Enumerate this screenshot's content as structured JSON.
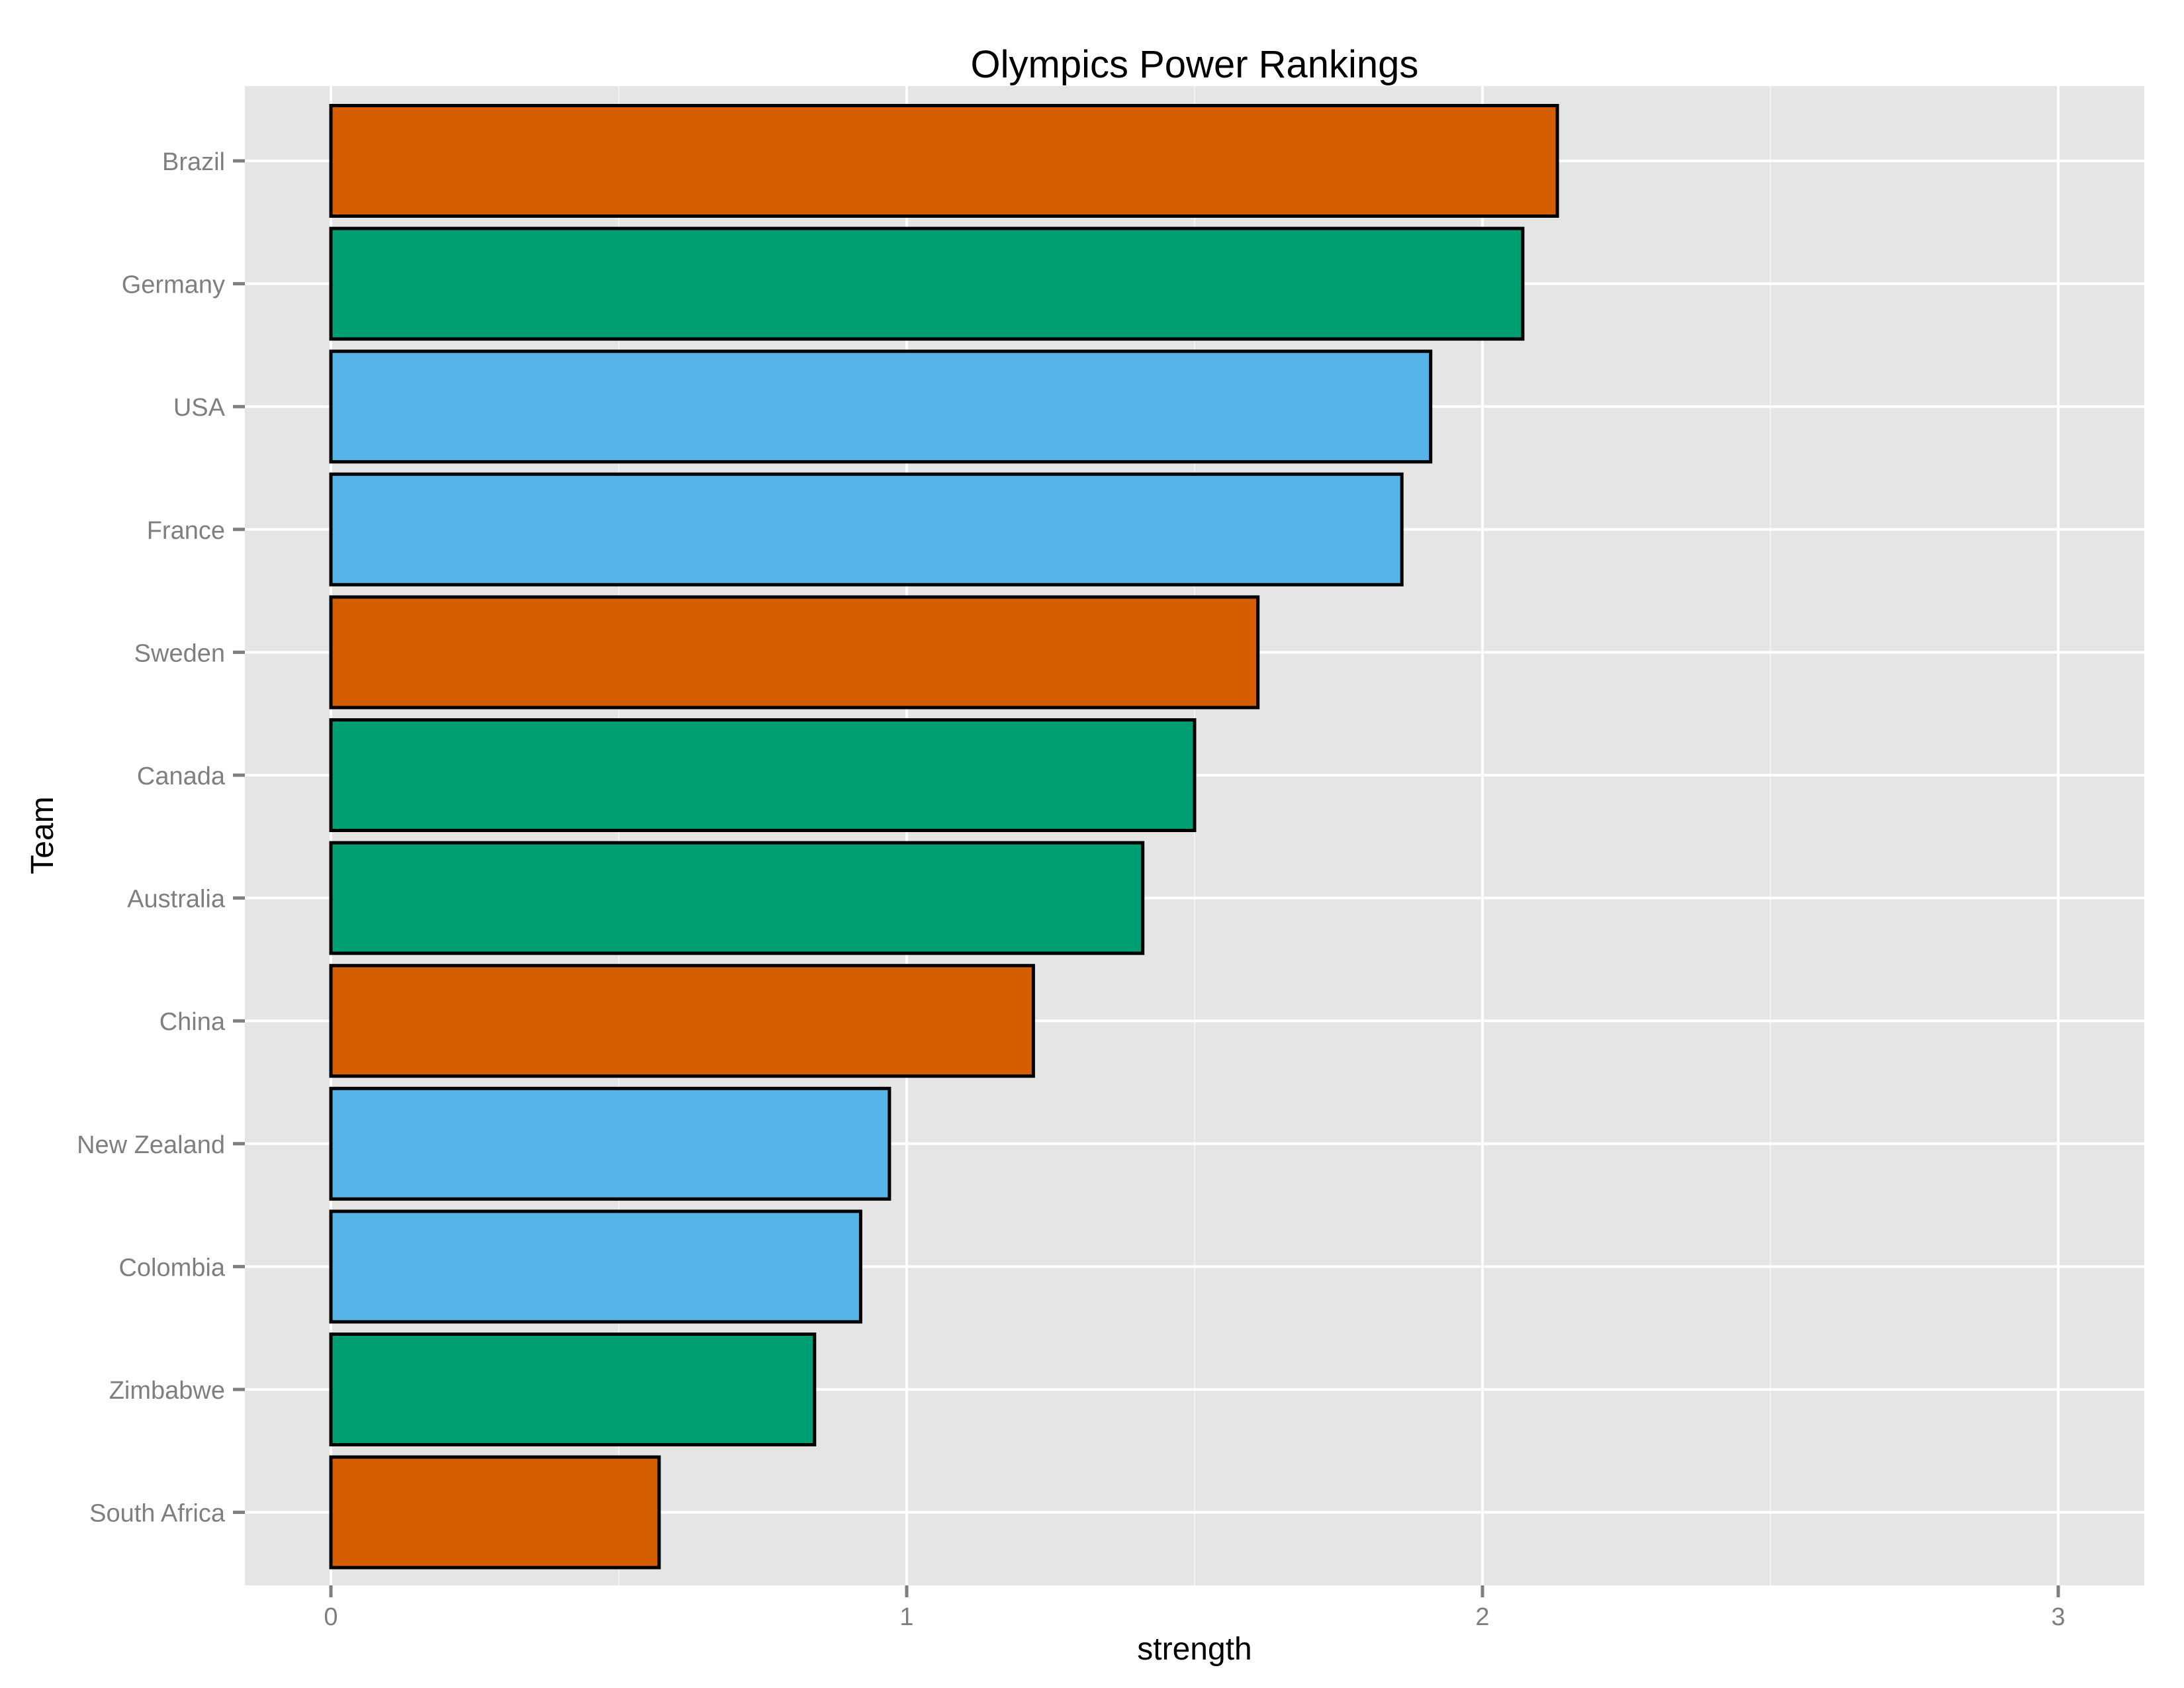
{
  "chart_data": {
    "type": "bar",
    "orientation": "horizontal",
    "title": "Olympics Power Rankings",
    "xlabel": "strength",
    "ylabel": "Team",
    "xlim": [
      0,
      3
    ],
    "xticks": [
      0,
      1,
      2,
      3
    ],
    "grid": true,
    "legend": "none",
    "categories": [
      "Brazil",
      "Germany",
      "USA",
      "France",
      "Sweden",
      "Canada",
      "Australia",
      "China",
      "New Zealand",
      "Colombia",
      "Zimbabwe",
      "South Africa"
    ],
    "values": [
      2.13,
      2.07,
      1.91,
      1.86,
      1.61,
      1.5,
      1.41,
      1.22,
      0.97,
      0.92,
      0.84,
      0.57
    ],
    "bar_colors": [
      "#D55E00",
      "#009E73",
      "#56B4E9",
      "#56B4E9",
      "#D55E00",
      "#009E73",
      "#009E73",
      "#D55E00",
      "#56B4E9",
      "#56B4E9",
      "#009E73",
      "#D55E00"
    ]
  },
  "colors": {
    "panel_background": "#E5E5E5",
    "gridline": "#FFFFFF",
    "bar_outline": "#000000",
    "tick_text": "#7F7F7F",
    "orange": "#D55E00",
    "green": "#009E73",
    "blue": "#56B4E9"
  }
}
